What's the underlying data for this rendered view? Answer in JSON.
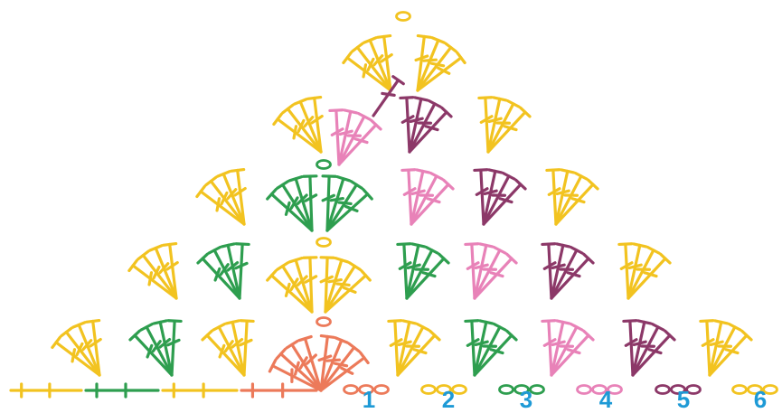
{
  "colors": {
    "yellow": "#f2c320",
    "green": "#2e9e4f",
    "pink": "#e882b8",
    "purple": "#8c3868",
    "coral": "#ec7a5a",
    "number": "#1e9ad6"
  },
  "row_numbers": [
    "1",
    "2",
    "3",
    "4",
    "5",
    "6"
  ]
}
